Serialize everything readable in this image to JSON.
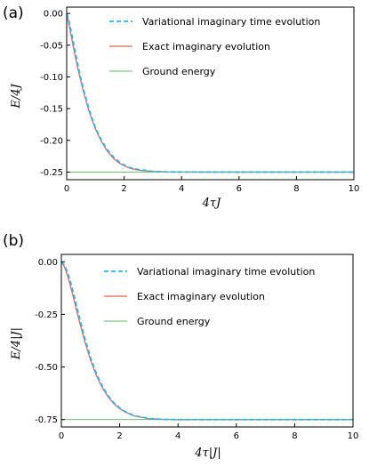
{
  "chart_data": [
    {
      "type": "line",
      "panel_label": "(a)",
      "xlabel": "4τJ",
      "ylabel": "E/4J",
      "xlim": [
        0,
        10
      ],
      "ylim": [
        -0.262,
        0.01
      ],
      "xticks": [
        "0",
        "2",
        "4",
        "6",
        "8",
        "10"
      ],
      "yticks": [
        "0.00",
        "-0.05",
        "-0.10",
        "-0.15",
        "-0.20",
        "-0.25"
      ],
      "grid": false,
      "legend_position": "top-right",
      "ground_energy": -0.25,
      "series": [
        {
          "name": "Variational imaginary time evolution",
          "color": "#29b6f6",
          "style": "dashed",
          "x": [
            0,
            0.1,
            0.2,
            0.3,
            0.4,
            0.5,
            0.6,
            0.8,
            1.0,
            1.2,
            1.4,
            1.6,
            1.8,
            2.0,
            2.2,
            2.5,
            3.0,
            3.5,
            4.0,
            5.0,
            6.0,
            8.0,
            10.0
          ],
          "values": [
            0.0,
            -0.016,
            -0.038,
            -0.061,
            -0.083,
            -0.104,
            -0.122,
            -0.154,
            -0.18,
            -0.199,
            -0.214,
            -0.225,
            -0.233,
            -0.239,
            -0.243,
            -0.246,
            -0.249,
            -0.2497,
            -0.2499,
            -0.25,
            -0.25,
            -0.25,
            -0.25
          ]
        },
        {
          "name": "Exact imaginary evolution",
          "color": "#f0604d",
          "style": "solid",
          "x": [
            0,
            0.1,
            0.2,
            0.3,
            0.4,
            0.5,
            0.6,
            0.8,
            1.0,
            1.2,
            1.4,
            1.6,
            1.8,
            2.0,
            2.2,
            2.5,
            3.0,
            3.5,
            4.0,
            5.0,
            6.0,
            8.0,
            10.0
          ],
          "values": [
            0.0,
            -0.022,
            -0.045,
            -0.068,
            -0.089,
            -0.108,
            -0.126,
            -0.157,
            -0.182,
            -0.201,
            -0.216,
            -0.227,
            -0.235,
            -0.24,
            -0.244,
            -0.247,
            -0.249,
            -0.2497,
            -0.2499,
            -0.25,
            -0.25,
            -0.25,
            -0.25
          ]
        },
        {
          "name": "Ground energy",
          "color": "#5cb85c",
          "style": "solid",
          "x": [
            0,
            10
          ],
          "values": [
            -0.25,
            -0.25
          ]
        }
      ]
    },
    {
      "type": "line",
      "panel_label": "(b)",
      "xlabel": "4τ|J|",
      "ylabel": "E/4|J|",
      "xlim": [
        0,
        10
      ],
      "ylim": [
        -0.785,
        0.035
      ],
      "xticks": [
        "0",
        "2",
        "4",
        "6",
        "8",
        "10"
      ],
      "yticks": [
        "0.00",
        "-0.25",
        "-0.50",
        "-0.75"
      ],
      "grid": false,
      "legend_position": "top-right",
      "ground_energy": -0.75,
      "series": [
        {
          "name": "Variational imaginary time evolution",
          "color": "#29b6f6",
          "style": "dashed",
          "x": [
            0,
            0.1,
            0.2,
            0.3,
            0.4,
            0.5,
            0.6,
            0.8,
            1.0,
            1.2,
            1.4,
            1.6,
            1.8,
            2.0,
            2.2,
            2.5,
            3.0,
            3.5,
            4.0,
            5.0,
            6.0,
            8.0,
            10.0
          ],
          "values": [
            0.0,
            -0.015,
            -0.045,
            -0.088,
            -0.14,
            -0.196,
            -0.253,
            -0.361,
            -0.455,
            -0.531,
            -0.59,
            -0.636,
            -0.67,
            -0.695,
            -0.713,
            -0.731,
            -0.745,
            -0.749,
            -0.75,
            -0.75,
            -0.75,
            -0.75,
            -0.75
          ]
        },
        {
          "name": "Exact imaginary evolution",
          "color": "#f0604d",
          "style": "solid",
          "x": [
            0,
            0.1,
            0.2,
            0.3,
            0.4,
            0.5,
            0.6,
            0.8,
            1.0,
            1.2,
            1.4,
            1.6,
            1.8,
            2.0,
            2.2,
            2.5,
            3.0,
            3.5,
            4.0,
            5.0,
            6.0,
            8.0,
            10.0
          ],
          "values": [
            0.0,
            -0.022,
            -0.06,
            -0.108,
            -0.162,
            -0.218,
            -0.273,
            -0.377,
            -0.467,
            -0.54,
            -0.597,
            -0.641,
            -0.674,
            -0.698,
            -0.715,
            -0.732,
            -0.746,
            -0.749,
            -0.75,
            -0.75,
            -0.75,
            -0.75,
            -0.75
          ]
        },
        {
          "name": "Ground energy",
          "color": "#5cb85c",
          "style": "solid",
          "x": [
            0,
            10
          ],
          "values": [
            -0.75,
            -0.75
          ]
        }
      ]
    }
  ]
}
